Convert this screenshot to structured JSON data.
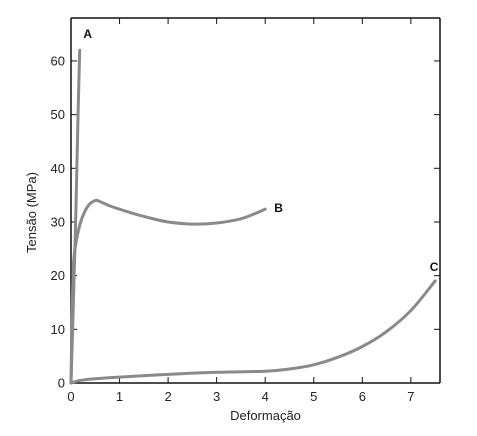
{
  "chart_data": {
    "type": "line",
    "title": "",
    "xlabel": "Deformação",
    "ylabel": "Tensão (MPa)",
    "xlim": [
      0,
      7.6
    ],
    "ylim": [
      0,
      68
    ],
    "xticks": [
      0,
      1,
      2,
      3,
      4,
      5,
      6,
      7
    ],
    "yticks": [
      0,
      10,
      20,
      30,
      40,
      50,
      60
    ],
    "grid": false,
    "legend": "none",
    "series": [
      {
        "name": "A",
        "color": "#8a8a8a",
        "x": [
          0,
          0.05,
          0.1,
          0.14,
          0.18
        ],
        "y": [
          0,
          15,
          32,
          48,
          62
        ]
      },
      {
        "name": "B",
        "color": "#8a8a8a",
        "x": [
          0,
          0.02,
          0.05,
          0.1,
          0.2,
          0.35,
          0.5,
          0.6,
          0.8,
          1.2,
          1.6,
          2.0,
          2.5,
          3.0,
          3.5,
          3.8,
          4.0
        ],
        "y": [
          0,
          12,
          22,
          26,
          30,
          33,
          34,
          33.8,
          33,
          31.8,
          30.8,
          30,
          29.6,
          29.8,
          30.6,
          31.6,
          32.4
        ]
      },
      {
        "name": "C",
        "color": "#8a8a8a",
        "x": [
          0,
          0.2,
          0.5,
          1.0,
          2.0,
          3.0,
          4.0,
          4.5,
          5.0,
          5.5,
          6.0,
          6.5,
          7.0,
          7.5
        ],
        "y": [
          0,
          0.5,
          0.8,
          1.1,
          1.6,
          2.0,
          2.2,
          2.6,
          3.4,
          4.8,
          6.8,
          9.6,
          13.5,
          19
        ]
      }
    ]
  }
}
